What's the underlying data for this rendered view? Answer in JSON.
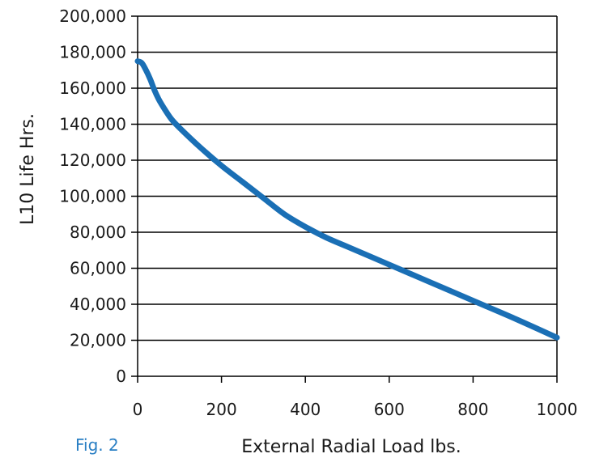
{
  "figure_label": "Fig. 2",
  "colors": {
    "line": "#1a6fb5",
    "figure_label": "#2a7fc4",
    "grid": "#000000",
    "text": "#1a1a1a"
  },
  "chart_data": {
    "type": "line",
    "title": "",
    "xlabel": "External Radial Load lbs.",
    "ylabel": "L10 Life Hrs.",
    "xlim": [
      0,
      1000
    ],
    "ylim": [
      0,
      200000
    ],
    "xticks": [
      0,
      200,
      400,
      600,
      800,
      1000
    ],
    "xtick_labels": [
      "0",
      "200",
      "400",
      "600",
      "800",
      "1000"
    ],
    "yticks": [
      0,
      20000,
      40000,
      60000,
      80000,
      100000,
      120000,
      140000,
      160000,
      180000,
      200000
    ],
    "ytick_labels": [
      "0",
      "20,000",
      "40,000",
      "60,000",
      "80,000",
      "100,000",
      "120,000",
      "140,000",
      "160,000",
      "180,000",
      "200,000"
    ],
    "grid": "horizontal",
    "series": [
      {
        "x": [
          0,
          10,
          20,
          30,
          40,
          50,
          60,
          80,
          100,
          150,
          200,
          250,
          300,
          350,
          400,
          450,
          500,
          600,
          700,
          800,
          900,
          1000
        ],
        "y": [
          175000,
          174000,
          170000,
          165000,
          159000,
          154000,
          150000,
          143000,
          138000,
          127000,
          117000,
          108000,
          99000,
          90000,
          83000,
          77000,
          72000,
          62000,
          52000,
          42000,
          32000,
          21500
        ]
      }
    ]
  }
}
